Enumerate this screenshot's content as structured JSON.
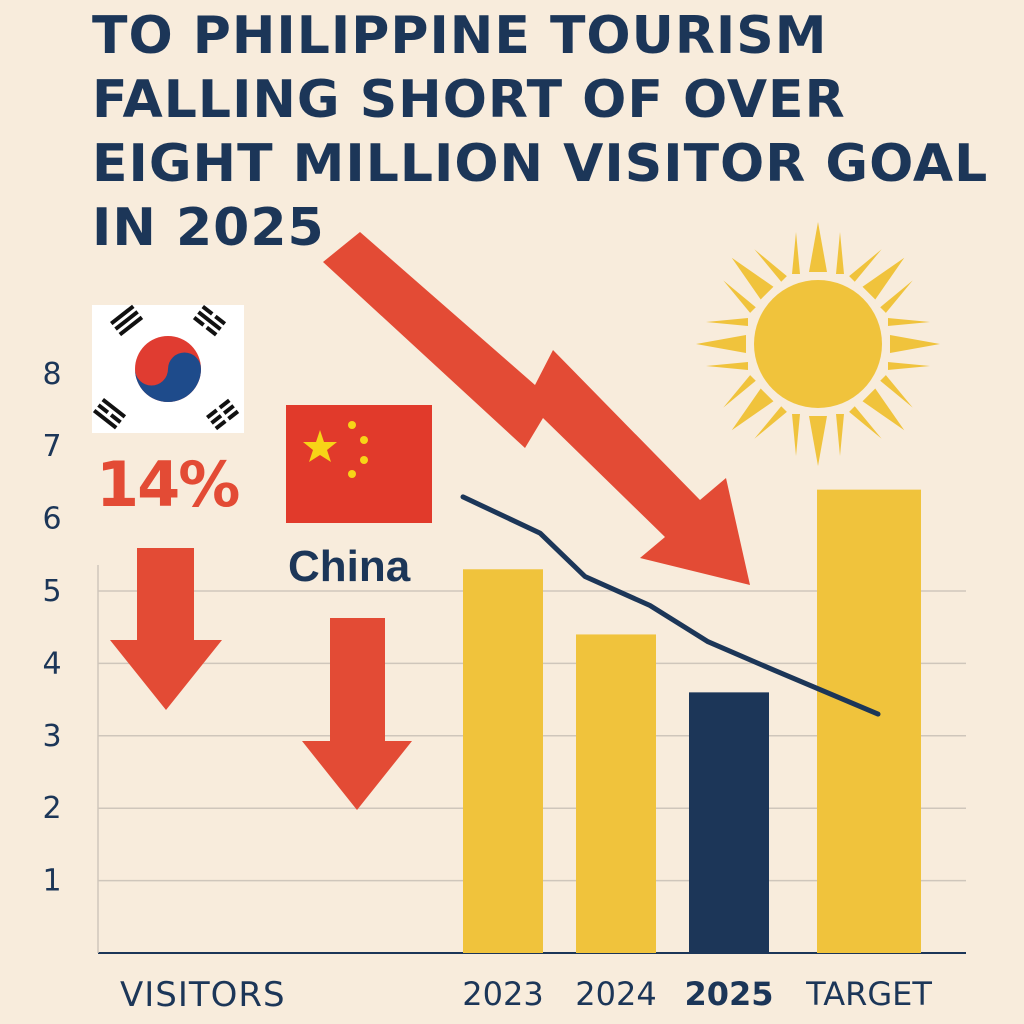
{
  "title_lines": [
    "TO PHILIPPINE TOURISM",
    "FALLING SHORT OF OVER",
    "EIGHT MILLION VISITOR GOAL",
    "IN 2025"
  ],
  "korea_change": "14%",
  "china_label": "China",
  "colors": {
    "background": "#f8ecdc",
    "navy": "#1c3658",
    "gold": "#f0c33c",
    "red": "#e34b35"
  },
  "chart_data": {
    "type": "bar",
    "title": "",
    "xlabel": "VISITORS",
    "ylabel": "",
    "ylim": [
      0,
      8.5
    ],
    "yticks": [
      "1",
      "2",
      "3",
      "4",
      "5",
      "6",
      "7",
      "8"
    ],
    "categories": [
      "2023",
      "2024",
      "2025",
      "TARGET"
    ],
    "values": [
      5.3,
      4.4,
      3.6,
      6.4
    ],
    "highlight": "2025",
    "trend_line": {
      "x": [
        "2023",
        "2023.5",
        "2024",
        "2024.5",
        "2025",
        "2025.5",
        "TARGET"
      ],
      "y": [
        6.3,
        5.8,
        5.2,
        4.8,
        4.3,
        3.9,
        3.3
      ]
    },
    "grid": "horizontal"
  }
}
